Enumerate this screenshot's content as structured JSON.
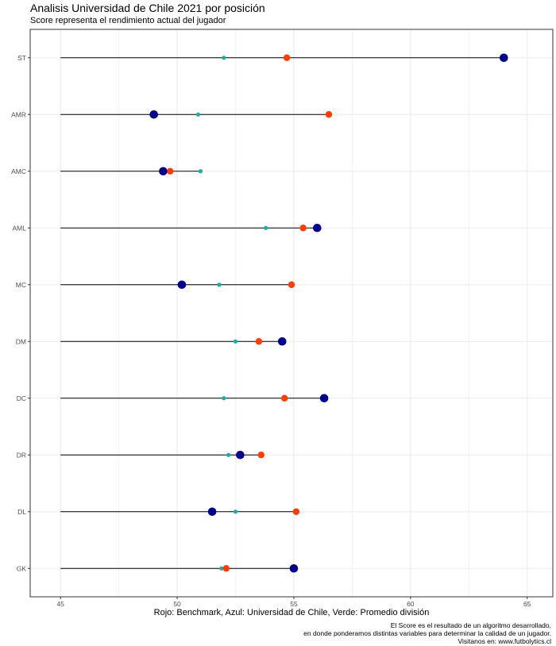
{
  "title": "Analisis Universidad de Chile 2021 por posición",
  "subtitle": "Score representa el rendimiento actual del jugador",
  "xlabel": "Rojo: Benchmark, Azul: Universidad de Chile, Verde: Promedio división",
  "caption": [
    "El Score es el resultado de un algoritmo desarrollado,",
    "en donde ponderamos distintas variables para determinar la calidad de un jugador.",
    "Visitanos en: www.futbolytics.cl"
  ],
  "colors": {
    "benchmark": "#FF3D00",
    "universidad": "#00008B",
    "promedio": "#1AADA5",
    "segment": "#000000",
    "grid": "#EBEBEB"
  },
  "chart_data": {
    "type": "dot",
    "title": "Analisis Universidad de Chile 2021 por posición",
    "subtitle": "Score representa el rendimiento actual del jugador",
    "xlabel": "Rojo: Benchmark, Azul: Universidad de Chile, Verde: Promedio división",
    "ylabel": "",
    "xlim": [
      43.7,
      66.1
    ],
    "xticks": [
      45,
      50,
      55,
      60,
      65
    ],
    "segment_start": 45,
    "grid": true,
    "categories": [
      "ST",
      "AMR",
      "AMC",
      "AML",
      "MC",
      "DM",
      "DC",
      "DR",
      "DL",
      "GK"
    ],
    "series": [
      {
        "key": "promedio",
        "values": [
          52.0,
          50.9,
          51.0,
          53.8,
          51.8,
          52.5,
          52.0,
          52.2,
          52.5,
          51.9
        ]
      },
      {
        "key": "benchmark",
        "values": [
          54.7,
          56.5,
          49.7,
          55.4,
          54.9,
          53.5,
          54.6,
          53.6,
          55.1,
          52.1
        ]
      },
      {
        "key": "universidad",
        "values": [
          64.0,
          49.0,
          49.4,
          56.0,
          50.2,
          54.5,
          56.3,
          52.7,
          51.5,
          55.0
        ]
      }
    ]
  }
}
